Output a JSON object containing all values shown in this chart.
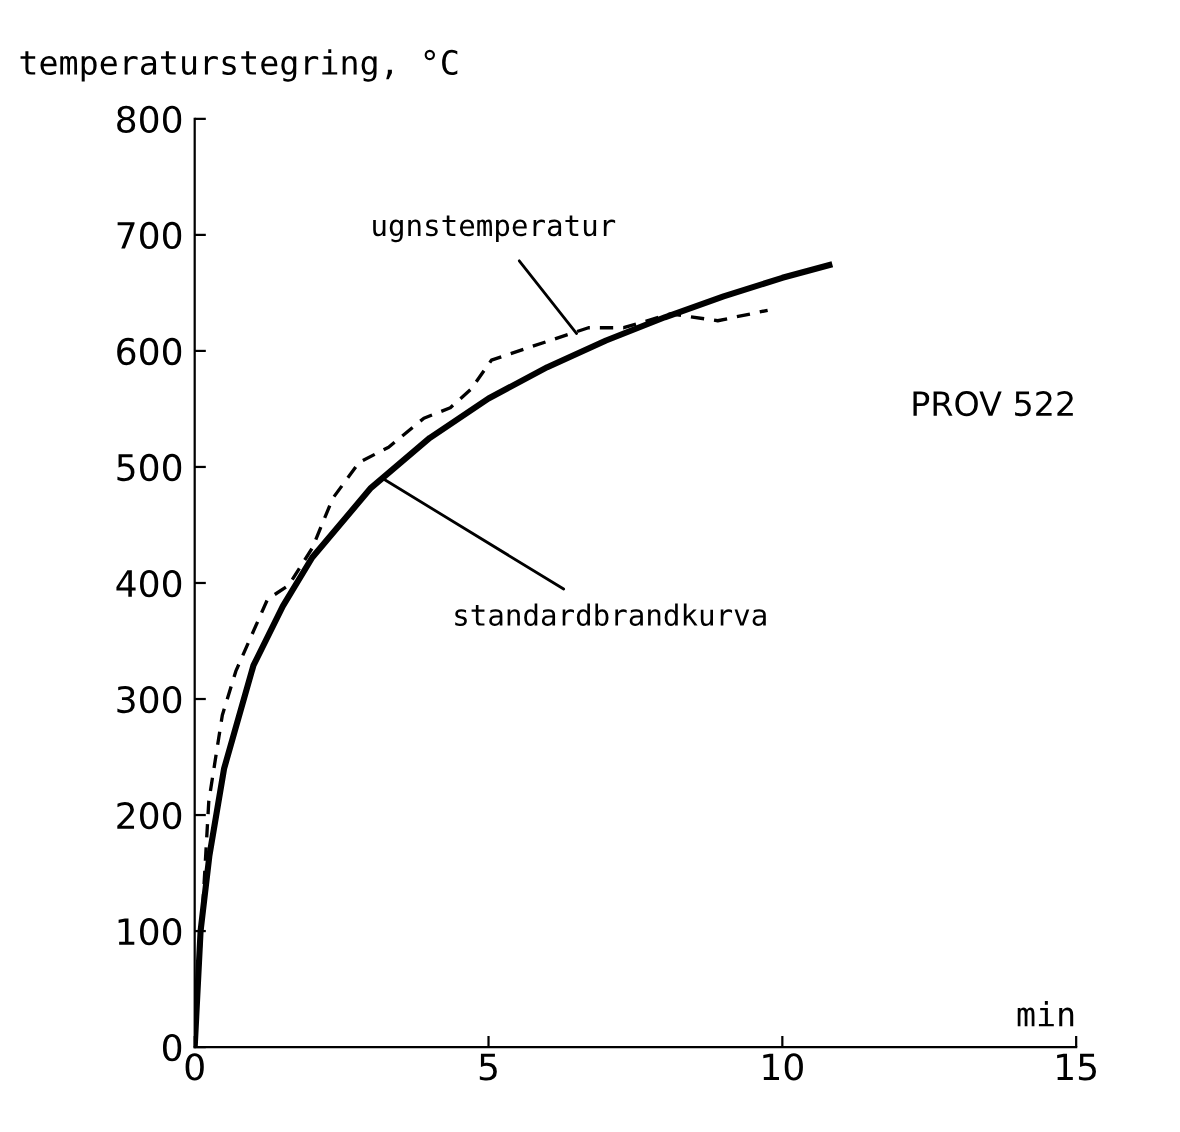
{
  "chart_data": {
    "type": "line",
    "ylabel": "temperaturstegring, °C",
    "xlabel": "min",
    "xlim": [
      0,
      15
    ],
    "xticks": [
      0,
      5,
      10,
      15
    ],
    "ylim": [
      0,
      800
    ],
    "yticks": [
      0,
      100,
      200,
      300,
      400,
      500,
      600,
      700,
      800
    ],
    "grid": false,
    "legend": false,
    "marker": "none",
    "series": [
      {
        "color": "#000000",
        "line_style": "solid",
        "x": [
          0,
          0.1,
          0.25,
          0.5,
          1,
          1.5,
          2,
          3,
          4,
          5,
          6,
          7,
          8,
          9,
          10,
          10.8
        ],
        "values": [
          0,
          100,
          165,
          240,
          329,
          380,
          422,
          482,
          525,
          559,
          586,
          609,
          629,
          647,
          663,
          674
        ]
      },
      {
        "color": "#000000",
        "line_style": "dashed",
        "x": [
          0,
          0.24,
          0.47,
          0.7,
          1.24,
          1.6,
          2.0,
          2.35,
          2.8,
          3.3,
          3.9,
          4.35,
          4.7,
          5.05,
          5.75,
          6.7,
          7.3,
          8.1,
          8.9,
          9.75
        ],
        "values": [
          0,
          212,
          286,
          324,
          386,
          398,
          430,
          473,
          504,
          517,
          542,
          551,
          567,
          592,
          604,
          620,
          620,
          632,
          626,
          635
        ]
      }
    ],
    "annotations": [
      {
        "text": "ugnstemperatur",
        "x": 6.5,
        "y": 615
      },
      {
        "text": "standardbrandkurva",
        "x": 3.2,
        "y": 490
      },
      "PROV 522"
    ]
  }
}
